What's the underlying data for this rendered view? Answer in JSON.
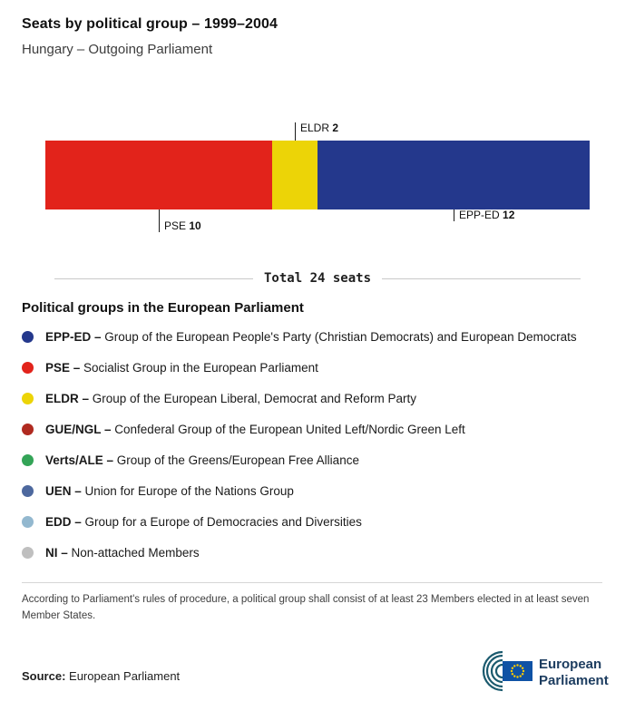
{
  "header": {
    "title": "Seats by political group – 1999–2004",
    "subtitle": "Hungary – Outgoing Parliament"
  },
  "chart_data": {
    "type": "bar",
    "variant": "horizontal-stacked",
    "title": "Seats by political group – 1999–2004",
    "total_seats": 24,
    "total_label": "Total 24 seats",
    "segments": [
      {
        "id": "pse",
        "name": "PSE",
        "value": 10,
        "color": "#e2231b",
        "callout": "below-long"
      },
      {
        "id": "eldr",
        "name": "ELDR",
        "value": 2,
        "color": "#ecd407",
        "callout": "above"
      },
      {
        "id": "epp-ed",
        "name": "EPP-ED",
        "value": 12,
        "color": "#24388c",
        "callout": "below-short"
      }
    ]
  },
  "legend": {
    "title": "Political groups in the European Parliament",
    "items": [
      {
        "id": "epp-ed",
        "abbr": "EPP-ED –",
        "desc": "Group of the European People's Party (Christian Democrats) and European Democrats",
        "color": "#24388c"
      },
      {
        "id": "pse",
        "abbr": "PSE –",
        "desc": "Socialist Group in the European Parliament",
        "color": "#e2231b"
      },
      {
        "id": "eldr",
        "abbr": "ELDR –",
        "desc": "Group of the European Liberal, Democrat and Reform Party",
        "color": "#ecd407"
      },
      {
        "id": "gue-ngl",
        "abbr": "GUE/NGL –",
        "desc": "Confederal Group of the European United Left/Nordic Green Left",
        "color": "#b02a20"
      },
      {
        "id": "verts-ale",
        "abbr": "Verts/ALE –",
        "desc": "Group of the Greens/European Free Alliance",
        "color": "#33a457"
      },
      {
        "id": "uen",
        "abbr": "UEN –",
        "desc": "Union for Europe of the Nations Group",
        "color": "#4d689e"
      },
      {
        "id": "edd",
        "abbr": "EDD –",
        "desc": "Group for a Europe of Democracies and Diversities",
        "color": "#93b8cf"
      },
      {
        "id": "ni",
        "abbr": "NI –",
        "desc": "Non-attached Members",
        "color": "#bfbfbf"
      }
    ]
  },
  "footnote": "According to Parliament's rules of procedure, a political group shall consist of at least 23 Members elected in at least seven Member States.",
  "source": {
    "label": "Source:",
    "value": "European Parliament"
  },
  "logo": {
    "line1": "European",
    "line2": "Parliament"
  }
}
